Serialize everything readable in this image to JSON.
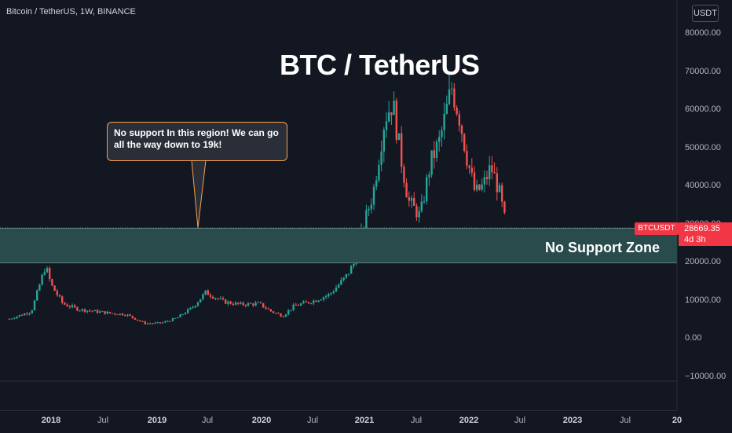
{
  "header": {
    "symbol_title": "Bitcoin / TetherUS, 1W, BINANCE",
    "currency_button": "USDT"
  },
  "annotations": {
    "main_title": "BTC / TetherUS",
    "callout_text": "No support In this region! We can go all the way down to 19k!",
    "zone_label": "No Support Zone"
  },
  "price_marker": {
    "symbol": "BTCUSDT",
    "price": "28669.35",
    "countdown": "4d 3h"
  },
  "price_axis": [
    "80000.00",
    "70000.00",
    "60000.00",
    "50000.00",
    "40000.00",
    "30000.00",
    "20000.00",
    "10000.00",
    "0.00",
    "−10000.00"
  ],
  "time_axis": [
    {
      "label": "2018",
      "year": true
    },
    {
      "label": "Jul",
      "year": false
    },
    {
      "label": "2019",
      "year": true
    },
    {
      "label": "Jul",
      "year": false
    },
    {
      "label": "2020",
      "year": true
    },
    {
      "label": "Jul",
      "year": false
    },
    {
      "label": "2021",
      "year": true
    },
    {
      "label": "Jul",
      "year": false
    },
    {
      "label": "2022",
      "year": true
    },
    {
      "label": "Jul",
      "year": false
    },
    {
      "label": "2023",
      "year": true
    },
    {
      "label": "Jul",
      "year": false
    },
    {
      "label": "20",
      "year": true
    }
  ],
  "colors": {
    "up": "#26a69a",
    "down": "#ef5350",
    "zone": "#2a4b4c",
    "callout_border": "#f7a14b"
  },
  "chart_data": {
    "type": "candlestick",
    "zone": [
      19000,
      29000
    ],
    "x": [
      "2017-11",
      "2018-01",
      "2018-04",
      "2018-07",
      "2018-11",
      "2019-02",
      "2019-06",
      "2019-09",
      "2019-12",
      "2020-03",
      "2020-06",
      "2020-10",
      "2021-01",
      "2021-02",
      "2021-04",
      "2021-05",
      "2021-07",
      "2021-08",
      "2021-10",
      "2021-11",
      "2021-12",
      "2022-01",
      "2022-03",
      "2022-04",
      "2022-05"
    ],
    "close": [
      5500,
      14000,
      7500,
      7500,
      6000,
      3600,
      7500,
      10000,
      7200,
      6200,
      9500,
      9800,
      32000,
      48000,
      59000,
      36000,
      32000,
      46000,
      60000,
      65000,
      46000,
      38000,
      45000,
      40000,
      28669
    ]
  }
}
